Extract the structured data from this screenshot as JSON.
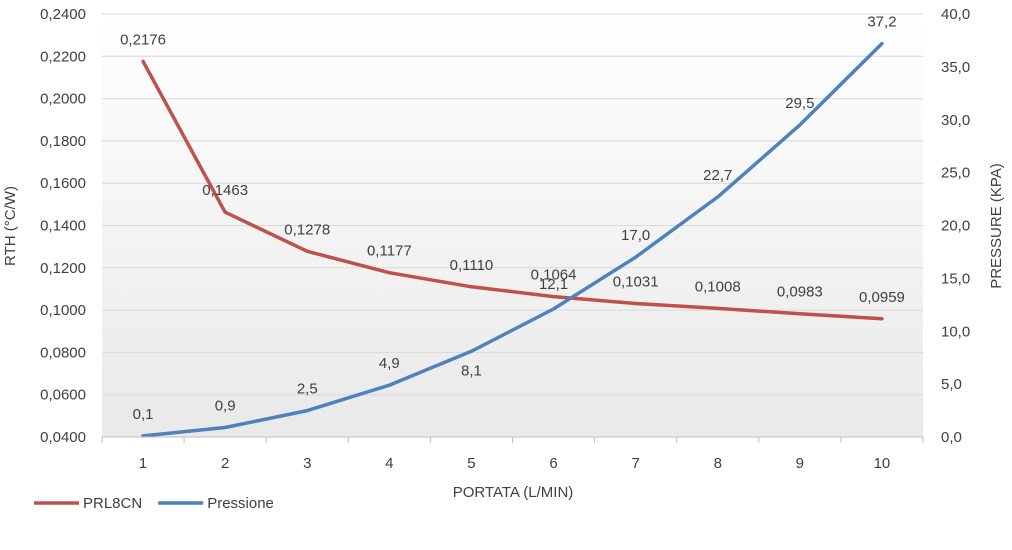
{
  "chart_data": {
    "type": "line",
    "title": "",
    "xlabel": "PORTATA (L/MIN)",
    "ylabel": "RTH (°C/W)",
    "y2label": "PRESSURE (KPA)",
    "x": [
      1,
      2,
      3,
      4,
      5,
      6,
      7,
      8,
      9,
      10
    ],
    "x_tick_labels": [
      "1",
      "2",
      "3",
      "4",
      "5",
      "6",
      "7",
      "8",
      "9",
      "10"
    ],
    "ylim": [
      0.04,
      0.24
    ],
    "y_tick_labels": [
      "0,0400",
      "0,0600",
      "0,0800",
      "0,1000",
      "0,1200",
      "0,1400",
      "0,1600",
      "0,1800",
      "0,2000",
      "0,2200",
      "0,2400"
    ],
    "y2lim": [
      0,
      40
    ],
    "y2_tick_labels": [
      "0,0",
      "5,0",
      "10,0",
      "15,0",
      "20,0",
      "25,0",
      "30,0",
      "35,0",
      "40,0"
    ],
    "grid": true,
    "legend_position": "bottom-left",
    "series": [
      {
        "name": "PRL8CN",
        "axis": "left",
        "color": "#c0504d",
        "values": [
          0.2176,
          0.1463,
          0.1278,
          0.1177,
          0.111,
          0.1064,
          0.1031,
          0.1008,
          0.0983,
          0.0959
        ],
        "labels": [
          "0,2176",
          "0,1463",
          "0,1278",
          "0,1177",
          "0,1110",
          "0,1064",
          "0,1031",
          "0,1008",
          "0,0983",
          "0,0959"
        ]
      },
      {
        "name": "Pressione",
        "axis": "right",
        "color": "#4f81bd",
        "values": [
          0.1,
          0.9,
          2.5,
          4.9,
          8.1,
          12.1,
          17.0,
          22.7,
          29.5,
          37.2
        ],
        "labels": [
          "0,1",
          "0,9",
          "2,5",
          "4,9",
          "8,1",
          "12,1",
          "17,0",
          "22,7",
          "29,5",
          "37,2"
        ]
      }
    ]
  }
}
